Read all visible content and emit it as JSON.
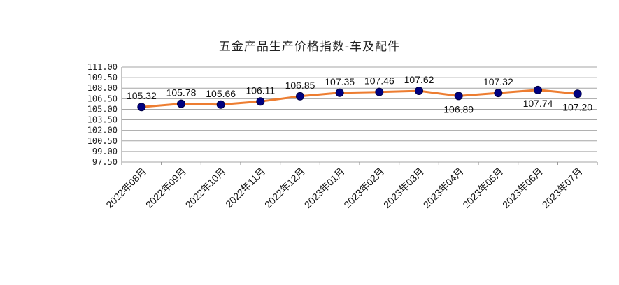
{
  "chart_data": {
    "type": "line",
    "title": "五金产品生产价格指数-车及配件",
    "categories": [
      "2022年08月",
      "2022年09月",
      "2022年10月",
      "2022年11月",
      "2022年12月",
      "2023年01月",
      "2023年02月",
      "2023年03月",
      "2023年04月",
      "2023年05月",
      "2023年06月",
      "2023年07月"
    ],
    "series": [
      {
        "values": [
          105.32,
          105.78,
          105.66,
          106.11,
          106.85,
          107.35,
          107.46,
          107.62,
          106.89,
          107.32,
          107.74,
          107.2
        ]
      }
    ],
    "data_labels": [
      "105.32",
      "105.78",
      "105.66",
      "106.11",
      "106.85",
      "107.35",
      "107.46",
      "107.62",
      "106.89",
      "107.32",
      "107.74",
      "107.20"
    ],
    "y_tick_labels": [
      "97.50",
      "99.00",
      "100.50",
      "102.00",
      "103.50",
      "105.00",
      "106.50",
      "108.00",
      "109.50",
      "111.00"
    ],
    "ylim": [
      97.5,
      111.0
    ],
    "grid": true,
    "legend": "none",
    "colors": {
      "line": "#ED7D31",
      "marker": "#000080",
      "grid": "#A6A6A6"
    }
  }
}
